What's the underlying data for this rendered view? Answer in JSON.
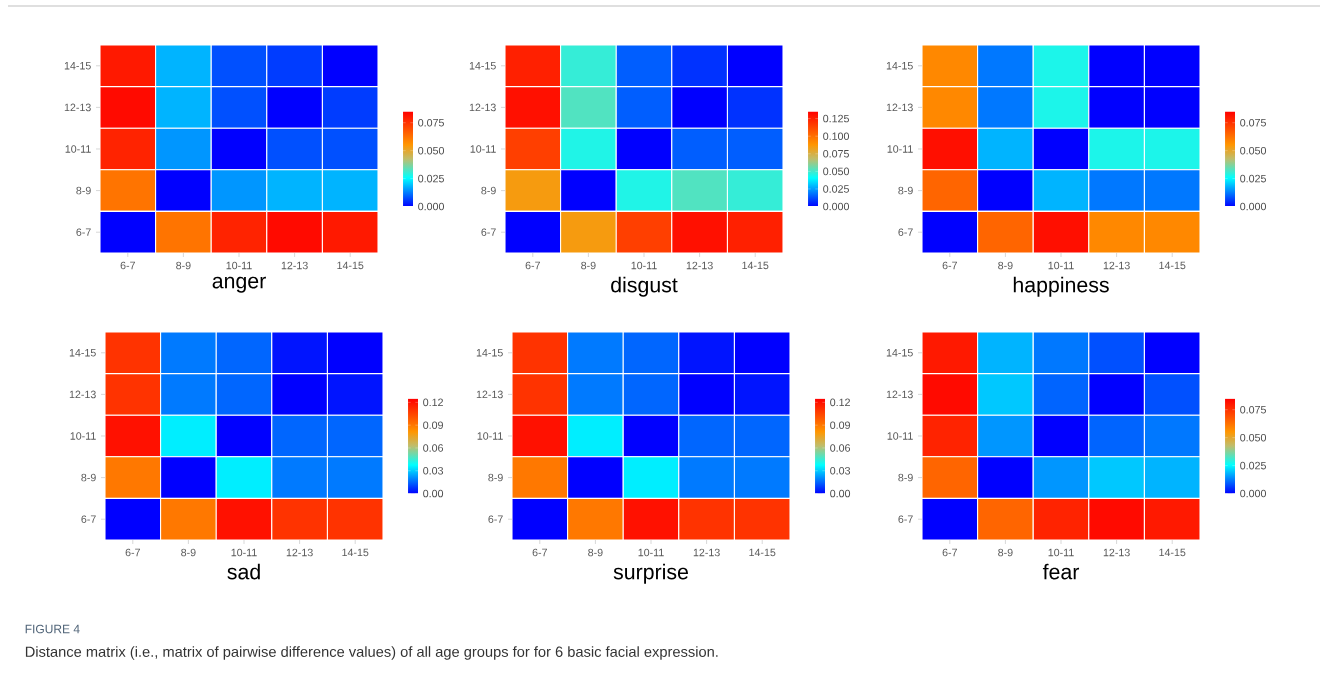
{
  "chart_data": [
    {
      "type": "heatmap",
      "title": "anger",
      "categories": [
        "6-7",
        "8-9",
        "10-11",
        "12-13",
        "14-15"
      ],
      "y_categories": [
        "14-15",
        "12-13",
        "10-11",
        "8-9",
        "6-7"
      ],
      "cells": [
        [
          0.08,
          0.018,
          0.008,
          0.006,
          0
        ],
        [
          0.083,
          0.018,
          0.008,
          0,
          0.006
        ],
        [
          0.078,
          0.015,
          0,
          0.008,
          0.008
        ],
        [
          0.062,
          0,
          0.015,
          0.018,
          0.018
        ],
        [
          0,
          0.062,
          0.078,
          0.083,
          0.08
        ]
      ],
      "clim": [
        0,
        0.085
      ],
      "cticks": [
        {
          "value": 0,
          "label": "0.000"
        },
        {
          "value": 0.025,
          "label": "0.025"
        },
        {
          "value": 0.05,
          "label": "0.050"
        },
        {
          "value": 0.075,
          "label": "0.075"
        }
      ]
    },
    {
      "type": "heatmap",
      "title": "disgust",
      "categories": [
        "6-7",
        "8-9",
        "10-11",
        "12-13",
        "14-15"
      ],
      "y_categories": [
        "14-15",
        "12-13",
        "10-11",
        "8-9",
        "6-7"
      ],
      "cells": [
        [
          0.125,
          0.048,
          0.015,
          0.008,
          0
        ],
        [
          0.13,
          0.052,
          0.015,
          0,
          0.008
        ],
        [
          0.115,
          0.045,
          0,
          0.015,
          0.015
        ],
        [
          0.085,
          0,
          0.045,
          0.052,
          0.048
        ],
        [
          0,
          0.085,
          0.115,
          0.13,
          0.125
        ]
      ],
      "clim": [
        0,
        0.135
      ],
      "cticks": [
        {
          "value": 0,
          "label": "0.000"
        },
        {
          "value": 0.025,
          "label": "0.025"
        },
        {
          "value": 0.05,
          "label": "0.050"
        },
        {
          "value": 0.075,
          "label": "0.075"
        },
        {
          "value": 0.1,
          "label": "0.100"
        },
        {
          "value": 0.125,
          "label": "0.125"
        }
      ]
    },
    {
      "type": "heatmap",
      "title": "happiness",
      "categories": [
        "6-7",
        "8-9",
        "10-11",
        "12-13",
        "14-15"
      ],
      "y_categories": [
        "14-15",
        "12-13",
        "10-11",
        "8-9",
        "6-7"
      ],
      "cells": [
        [
          0.058,
          0.012,
          0.028,
          0,
          0
        ],
        [
          0.058,
          0.012,
          0.028,
          0,
          0
        ],
        [
          0.082,
          0.018,
          0,
          0.028,
          0.028
        ],
        [
          0.065,
          0,
          0.018,
          0.012,
          0.012
        ],
        [
          0,
          0.065,
          0.082,
          0.058,
          0.058
        ]
      ],
      "clim": [
        0,
        0.085
      ],
      "cticks": [
        {
          "value": 0,
          "label": "0.000"
        },
        {
          "value": 0.025,
          "label": "0.025"
        },
        {
          "value": 0.05,
          "label": "0.050"
        },
        {
          "value": 0.075,
          "label": "0.075"
        }
      ]
    },
    {
      "type": "heatmap",
      "title": "sad",
      "categories": [
        "6-7",
        "8-9",
        "10-11",
        "12-13",
        "14-15"
      ],
      "y_categories": [
        "14-15",
        "12-13",
        "10-11",
        "8-9",
        "6-7"
      ],
      "cells": [
        [
          0.11,
          0.018,
          0.015,
          0.003,
          0
        ],
        [
          0.11,
          0.018,
          0.015,
          0,
          0.003
        ],
        [
          0.12,
          0.035,
          0,
          0.015,
          0.015
        ],
        [
          0.09,
          0,
          0.035,
          0.018,
          0.018
        ],
        [
          0,
          0.09,
          0.12,
          0.11,
          0.11
        ]
      ],
      "clim": [
        0,
        0.125
      ],
      "cticks": [
        {
          "value": 0,
          "label": "0.00"
        },
        {
          "value": 0.03,
          "label": "0.03"
        },
        {
          "value": 0.06,
          "label": "0.06"
        },
        {
          "value": 0.09,
          "label": "0.09"
        },
        {
          "value": 0.12,
          "label": "0.12"
        }
      ]
    },
    {
      "type": "heatmap",
      "title": "surprise",
      "categories": [
        "6-7",
        "8-9",
        "10-11",
        "12-13",
        "14-15"
      ],
      "y_categories": [
        "14-15",
        "12-13",
        "10-11",
        "8-9",
        "6-7"
      ],
      "cells": [
        [
          0.11,
          0.018,
          0.015,
          0.003,
          0
        ],
        [
          0.11,
          0.018,
          0.015,
          0,
          0.003
        ],
        [
          0.12,
          0.035,
          0,
          0.015,
          0.015
        ],
        [
          0.09,
          0,
          0.035,
          0.018,
          0.018
        ],
        [
          0,
          0.09,
          0.12,
          0.11,
          0.11
        ]
      ],
      "clim": [
        0,
        0.125
      ],
      "cticks": [
        {
          "value": 0,
          "label": "0.00"
        },
        {
          "value": 0.03,
          "label": "0.03"
        },
        {
          "value": 0.06,
          "label": "0.06"
        },
        {
          "value": 0.09,
          "label": "0.09"
        },
        {
          "value": 0.12,
          "label": "0.12"
        }
      ]
    },
    {
      "type": "heatmap",
      "title": "fear",
      "categories": [
        "6-7",
        "8-9",
        "10-11",
        "12-13",
        "14-15"
      ],
      "y_categories": [
        "14-15",
        "12-13",
        "10-11",
        "8-9",
        "6-7"
      ],
      "cells": [
        [
          0.08,
          0.018,
          0.012,
          0.008,
          0
        ],
        [
          0.083,
          0.02,
          0.01,
          0,
          0.008
        ],
        [
          0.078,
          0.015,
          0,
          0.01,
          0.012
        ],
        [
          0.065,
          0,
          0.015,
          0.02,
          0.018
        ],
        [
          0,
          0.065,
          0.078,
          0.083,
          0.08
        ]
      ],
      "clim": [
        0,
        0.085
      ],
      "cticks": [
        {
          "value": 0,
          "label": "0.000"
        },
        {
          "value": 0.025,
          "label": "0.025"
        },
        {
          "value": 0.05,
          "label": "0.050"
        },
        {
          "value": 0.075,
          "label": "0.075"
        }
      ],
      "annotations": [
        "FIGURE 4",
        "Distance matrix (i.e., matrix of pairwise difference values) of all age groups for for 6 basic facial expression."
      ]
    }
  ]
}
